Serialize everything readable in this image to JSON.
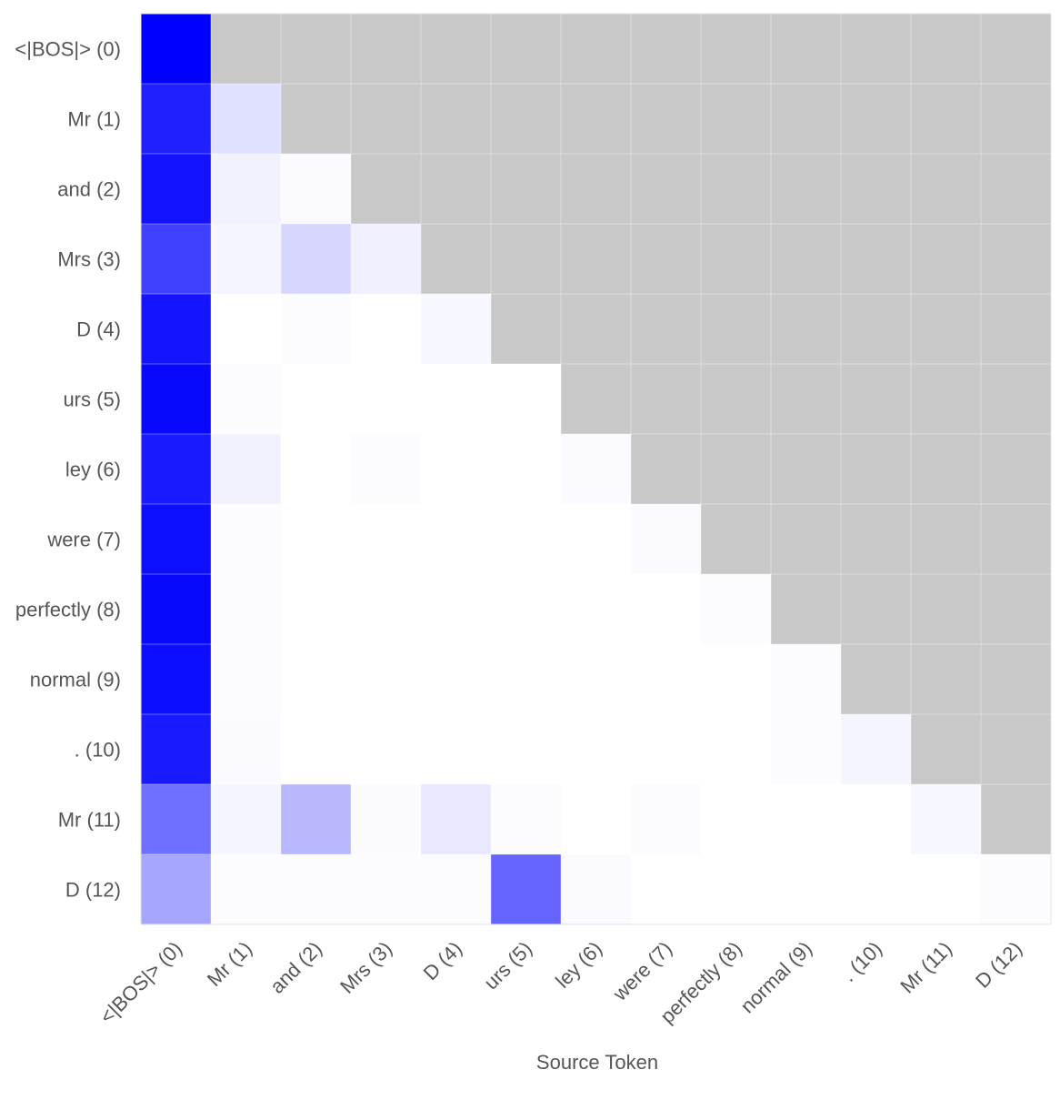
{
  "chart_data": {
    "type": "heatmap",
    "title": "",
    "xlabel": "Source Token",
    "ylabel": "",
    "x_labels": [
      "<|BOS|> (0)",
      "Mr (1)",
      "and (2)",
      "Mrs (3)",
      "D (4)",
      "urs (5)",
      "ley (6)",
      "were (7)",
      "perfectly (8)",
      "normal (9)",
      ". (10)",
      "Mr (11)",
      "D (12)"
    ],
    "y_labels": [
      "<|BOS|> (0)",
      "Mr (1)",
      "and (2)",
      "Mrs (3)",
      "D (4)",
      "urs (5)",
      "ley (6)",
      "were (7)",
      "perfectly (8)",
      "normal (9)",
      ". (10)",
      "Mr (11)",
      "D (12)"
    ],
    "values": [
      [
        1.0
      ],
      [
        0.88,
        0.12
      ],
      [
        0.93,
        0.05,
        0.02
      ],
      [
        0.75,
        0.04,
        0.16,
        0.06
      ],
      [
        0.92,
        0.0,
        0.01,
        0.0,
        0.03
      ],
      [
        0.97,
        0.01,
        0.0,
        0.0,
        0.0,
        0.0
      ],
      [
        0.9,
        0.05,
        0.0,
        0.01,
        0.0,
        0.0,
        0.02
      ],
      [
        0.94,
        0.01,
        0.0,
        0.0,
        0.0,
        0.0,
        0.0,
        0.02
      ],
      [
        0.97,
        0.01,
        0.0,
        0.0,
        0.0,
        0.0,
        0.0,
        0.0,
        0.01
      ],
      [
        0.95,
        0.01,
        0.0,
        0.0,
        0.0,
        0.0,
        0.0,
        0.0,
        0.0,
        0.01
      ],
      [
        0.9,
        0.02,
        0.0,
        0.0,
        0.0,
        0.0,
        0.0,
        0.0,
        0.0,
        0.01,
        0.04
      ],
      [
        0.56,
        0.04,
        0.28,
        0.02,
        0.09,
        0.01,
        0.0,
        0.01,
        0.0,
        0.0,
        0.0,
        0.03
      ],
      [
        0.35,
        0.01,
        0.01,
        0.01,
        0.01,
        0.6,
        0.02,
        0.0,
        0.0,
        0.0,
        0.0,
        0.0,
        0.01
      ]
    ],
    "color_min": "#ffffff",
    "color_max": "#0000ff",
    "masked_color": "#c8c8c8",
    "grid": true
  }
}
